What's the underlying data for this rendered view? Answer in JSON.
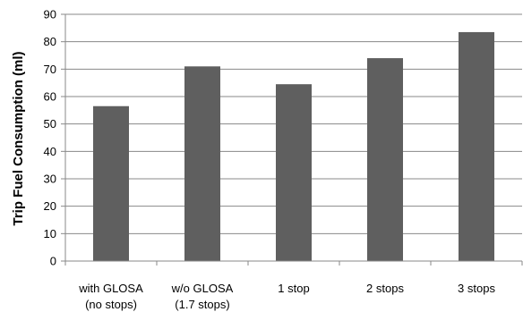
{
  "chart_data": {
    "type": "bar",
    "title": "",
    "xlabel": "",
    "ylabel": "Trip Fuel Consumption (ml)",
    "ylim": [
      0,
      90
    ],
    "yticks": [
      0,
      10,
      20,
      30,
      40,
      50,
      60,
      70,
      80,
      90
    ],
    "grid": true,
    "categories": [
      [
        "with GLOSA",
        "(no stops)"
      ],
      [
        "w/o GLOSA",
        "(1.7 stops)"
      ],
      [
        "1 stop"
      ],
      [
        "2 stops"
      ],
      [
        "3 stops"
      ]
    ],
    "values": [
      56.5,
      71,
      64.5,
      74,
      83.5
    ],
    "bar_color": "#5f5f5f",
    "grid_color": "#888888"
  }
}
